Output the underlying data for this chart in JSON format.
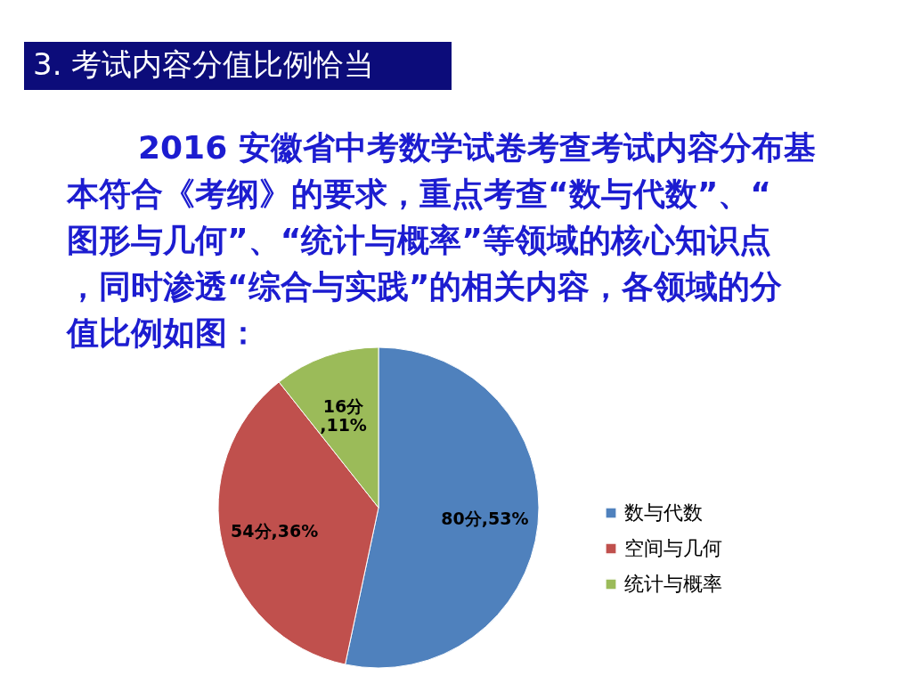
{
  "chart_data": {
    "type": "pie",
    "title": "3. 考试内容分值比例恰当",
    "subtitle": "2016 安徽省中考数学试卷考查考试内容分布基本符合《考纲》的要求，重点考查“数与代数”、“图形与几何”、“统计与概率”等领域的核心知识点，同时渗透“综合与实践”的相关内容，各领域的分值比例如图：",
    "categories": [
      "数与代数",
      "空间与几何",
      "统计与概率"
    ],
    "values": [
      80,
      54,
      16
    ],
    "colors": [
      "#4f81bd",
      "#c0504d",
      "#9bbb59"
    ],
    "value_labels": [
      "80分,53%",
      "54分,36%",
      "16分,11%"
    ],
    "legend": "right"
  }
}
